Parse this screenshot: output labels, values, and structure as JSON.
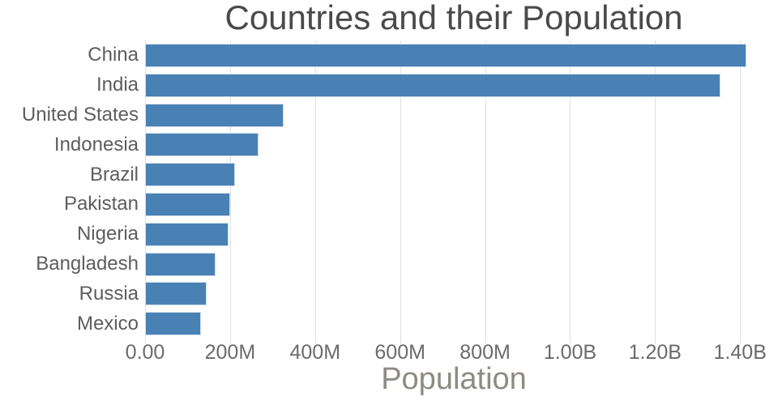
{
  "title": "Countries and their Population",
  "chart_data": {
    "type": "bar",
    "orientation": "horizontal",
    "title": "Countries and their Population",
    "xlabel": "Population",
    "ylabel": "",
    "categories": [
      "China",
      "India",
      "United States",
      "Indonesia",
      "Brazil",
      "Pakistan",
      "Nigeria",
      "Bangladesh",
      "Russia",
      "Mexico"
    ],
    "values_millions": [
      1415,
      1354,
      327,
      267,
      211,
      201,
      196,
      166,
      144,
      131
    ],
    "x_tick_labels": [
      "0.00",
      "200M",
      "400M",
      "600M",
      "800M",
      "1.00B",
      "1.20B",
      "1.40B"
    ],
    "x_tick_values_millions": [
      0,
      200,
      400,
      600,
      800,
      1000,
      1200,
      1400
    ],
    "xlim_millions": [
      0,
      1453
    ],
    "grid": true,
    "legend": false,
    "colors": {
      "bar_fill": "#4a81b4",
      "bar_edge": "#cfdfee",
      "gridline": "#e0e0e0",
      "title_text": "#4a4a4a",
      "y_tick_text": "#5d5d5d",
      "x_tick_text": "#6b6b6b",
      "xlabel_text": "#8e8a84",
      "background": "#ffffff"
    }
  }
}
